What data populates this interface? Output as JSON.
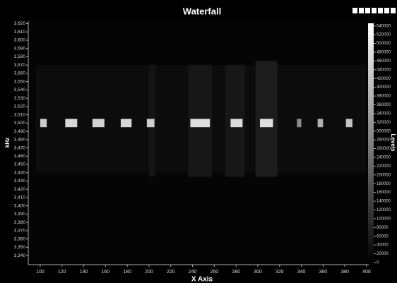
{
  "chart_data": {
    "type": "heatmap",
    "title": "Waterfall",
    "x_label": "X Axis",
    "y_label": "kHz",
    "colorbar_label": "Levels",
    "xlim": [
      89,
      402
    ],
    "xticks": [
      100,
      120,
      140,
      160,
      180,
      200,
      220,
      240,
      260,
      280,
      300,
      320,
      340,
      360,
      380,
      400
    ],
    "ylim": [
      3329,
      3623
    ],
    "yticks": [
      {
        "value": 3340,
        "label": "3,340"
      },
      {
        "value": 3350,
        "label": "3,350"
      },
      {
        "value": 3360,
        "label": "3,360"
      },
      {
        "value": 3370,
        "label": "3,370"
      },
      {
        "value": 3380,
        "label": "3,380"
      },
      {
        "value": 3390,
        "label": "3,390"
      },
      {
        "value": 3400,
        "label": "3,400"
      },
      {
        "value": 3410,
        "label": "3,410"
      },
      {
        "value": 3420,
        "label": "3,420"
      },
      {
        "value": 3430,
        "label": "3,430"
      },
      {
        "value": 3440,
        "label": "3,440"
      },
      {
        "value": 3450,
        "label": "3,450"
      },
      {
        "value": 3460,
        "label": "3,460"
      },
      {
        "value": 3470,
        "label": "3,470"
      },
      {
        "value": 3480,
        "label": "3,480"
      },
      {
        "value": 3490,
        "label": "3,490"
      },
      {
        "value": 3500,
        "label": "3,500"
      },
      {
        "value": 3510,
        "label": "3,510"
      },
      {
        "value": 3520,
        "label": "3,520"
      },
      {
        "value": 3530,
        "label": "3,530"
      },
      {
        "value": 3540,
        "label": "3,540"
      },
      {
        "value": 3550,
        "label": "3,550"
      },
      {
        "value": 3560,
        "label": "3,560"
      },
      {
        "value": 3570,
        "label": "3,570"
      },
      {
        "value": 3580,
        "label": "3,580"
      },
      {
        "value": 3590,
        "label": "3,590"
      },
      {
        "value": 3600,
        "label": "3,600"
      },
      {
        "value": 3610,
        "label": "3,610"
      },
      {
        "value": 3620,
        "label": "3,620"
      }
    ],
    "zlim": [
      0,
      546000
    ],
    "zticks": [
      0,
      20000,
      40000,
      60000,
      80000,
      100000,
      120000,
      140000,
      160000,
      180000,
      200000,
      220000,
      240000,
      260000,
      280000,
      300000,
      320000,
      340000,
      360000,
      380000,
      400000,
      420000,
      440000,
      460000,
      480000,
      500000,
      520000,
      540000
    ],
    "cells": {
      "x0": [
        96,
        200,
        236,
        270,
        298,
        100,
        123,
        148,
        174,
        198,
        238,
        275,
        302,
        336,
        355,
        381
      ],
      "x1": [
        400,
        206,
        258,
        288,
        318,
        106,
        134,
        159,
        184,
        205,
        256,
        286,
        314,
        340,
        360,
        387
      ],
      "y0": [
        3440,
        3435,
        3435,
        3435,
        3435,
        3495,
        3495,
        3495,
        3495,
        3495,
        3495,
        3495,
        3495,
        3495,
        3495,
        3495
      ],
      "y1": [
        3570,
        3570,
        3570,
        3570,
        3575,
        3505,
        3505,
        3505,
        3505,
        3505,
        3505,
        3505,
        3505,
        3505,
        3505,
        3505
      ],
      "levels": [
        25000,
        45000,
        50000,
        50000,
        60000,
        440000,
        460000,
        450000,
        460000,
        440000,
        480000,
        470000,
        480000,
        300000,
        380000,
        420000
      ]
    }
  }
}
